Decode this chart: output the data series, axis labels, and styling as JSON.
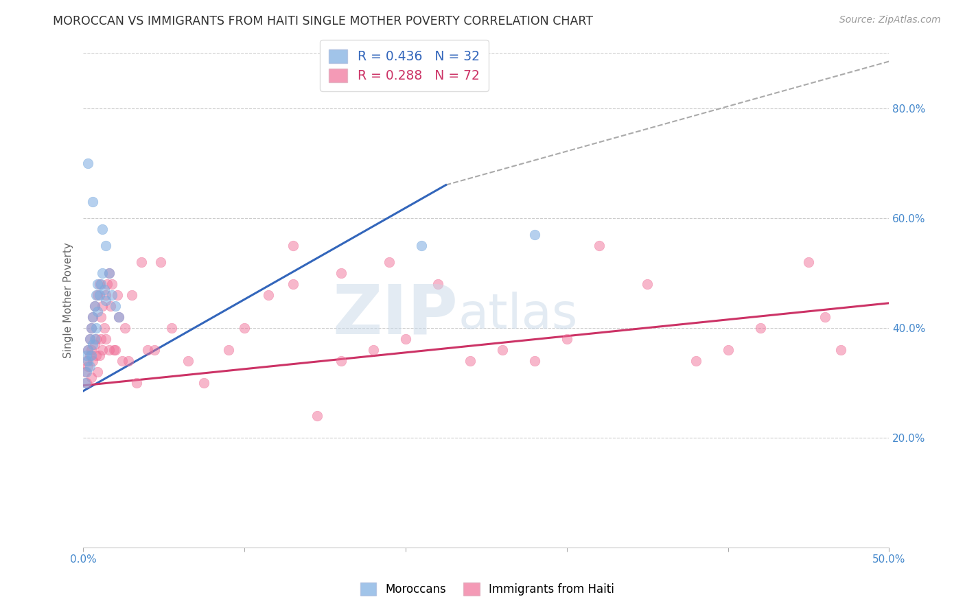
{
  "title": "MOROCCAN VS IMMIGRANTS FROM HAITI SINGLE MOTHER POVERTY CORRELATION CHART",
  "source": "Source: ZipAtlas.com",
  "ylabel": "Single Mother Poverty",
  "xlim": [
    0,
    0.5
  ],
  "ylim": [
    0.0,
    0.9
  ],
  "xticks": [
    0.0,
    0.1,
    0.2,
    0.3,
    0.4,
    0.5
  ],
  "xticklabels": [
    "0.0%",
    "",
    "",
    "",
    "",
    "50.0%"
  ],
  "yticks_right": [
    0.2,
    0.4,
    0.6,
    0.8
  ],
  "ytick_right_labels": [
    "20.0%",
    "40.0%",
    "60.0%",
    "80.0%"
  ],
  "legend_entries": [
    {
      "label": "R = 0.436   N = 32",
      "color": "#6699cc"
    },
    {
      "label": "R = 0.288   N = 72",
      "color": "#ee6688"
    }
  ],
  "moroccan_color": "#7aabe0",
  "haiti_color": "#f07098",
  "moroccan_alpha": 0.55,
  "haiti_alpha": 0.5,
  "marker_size": 110,
  "blue_line_color": "#3366bb",
  "pink_line_color": "#cc3366",
  "dashed_line_color": "#aaaaaa",
  "background_color": "#ffffff",
  "grid_color": "#cccccc",
  "title_color": "#333333",
  "axis_color": "#4488cc",
  "legend_label_moroccan": "Moroccans",
  "legend_label_haiti": "Immigrants from Haiti",
  "moroccan_x": [
    0.001,
    0.002,
    0.002,
    0.003,
    0.003,
    0.004,
    0.004,
    0.005,
    0.005,
    0.006,
    0.006,
    0.007,
    0.007,
    0.008,
    0.008,
    0.009,
    0.009,
    0.01,
    0.011,
    0.012,
    0.013,
    0.014,
    0.016,
    0.018,
    0.02,
    0.022,
    0.003,
    0.006,
    0.012,
    0.014,
    0.21,
    0.28
  ],
  "moroccan_y": [
    0.3,
    0.32,
    0.35,
    0.34,
    0.36,
    0.33,
    0.38,
    0.35,
    0.4,
    0.37,
    0.42,
    0.38,
    0.44,
    0.4,
    0.46,
    0.43,
    0.48,
    0.46,
    0.48,
    0.5,
    0.47,
    0.45,
    0.5,
    0.46,
    0.44,
    0.42,
    0.7,
    0.63,
    0.58,
    0.55,
    0.55,
    0.57
  ],
  "haiti_x": [
    0.001,
    0.002,
    0.002,
    0.003,
    0.003,
    0.004,
    0.004,
    0.005,
    0.005,
    0.005,
    0.006,
    0.006,
    0.007,
    0.007,
    0.008,
    0.008,
    0.009,
    0.009,
    0.01,
    0.01,
    0.011,
    0.011,
    0.012,
    0.012,
    0.013,
    0.014,
    0.014,
    0.015,
    0.016,
    0.016,
    0.017,
    0.018,
    0.019,
    0.02,
    0.021,
    0.022,
    0.024,
    0.026,
    0.028,
    0.03,
    0.033,
    0.036,
    0.04,
    0.044,
    0.048,
    0.055,
    0.065,
    0.075,
    0.09,
    0.1,
    0.115,
    0.13,
    0.145,
    0.16,
    0.18,
    0.2,
    0.22,
    0.24,
    0.26,
    0.28,
    0.3,
    0.32,
    0.35,
    0.38,
    0.4,
    0.42,
    0.45,
    0.47,
    0.13,
    0.16,
    0.19,
    0.46
  ],
  "haiti_y": [
    0.32,
    0.3,
    0.34,
    0.33,
    0.36,
    0.35,
    0.38,
    0.31,
    0.36,
    0.4,
    0.34,
    0.42,
    0.37,
    0.44,
    0.35,
    0.38,
    0.32,
    0.46,
    0.35,
    0.48,
    0.38,
    0.42,
    0.36,
    0.44,
    0.4,
    0.46,
    0.38,
    0.48,
    0.36,
    0.5,
    0.44,
    0.48,
    0.36,
    0.36,
    0.46,
    0.42,
    0.34,
    0.4,
    0.34,
    0.46,
    0.3,
    0.52,
    0.36,
    0.36,
    0.52,
    0.4,
    0.34,
    0.3,
    0.36,
    0.4,
    0.46,
    0.48,
    0.24,
    0.34,
    0.36,
    0.38,
    0.48,
    0.34,
    0.36,
    0.34,
    0.38,
    0.55,
    0.48,
    0.34,
    0.36,
    0.4,
    0.52,
    0.36,
    0.55,
    0.5,
    0.52,
    0.42
  ],
  "blue_line_x": [
    0.0,
    0.225
  ],
  "blue_line_y": [
    0.285,
    0.66
  ],
  "pink_line_x": [
    0.0,
    0.5
  ],
  "pink_line_y": [
    0.295,
    0.445
  ],
  "dashed_line_x": [
    0.225,
    0.5
  ],
  "dashed_line_y": [
    0.66,
    0.885
  ],
  "watermark_zip": "ZIP",
  "watermark_atlas": "atlas",
  "watermark_color": "#c8d8e8",
  "watermark_alpha": 0.5
}
